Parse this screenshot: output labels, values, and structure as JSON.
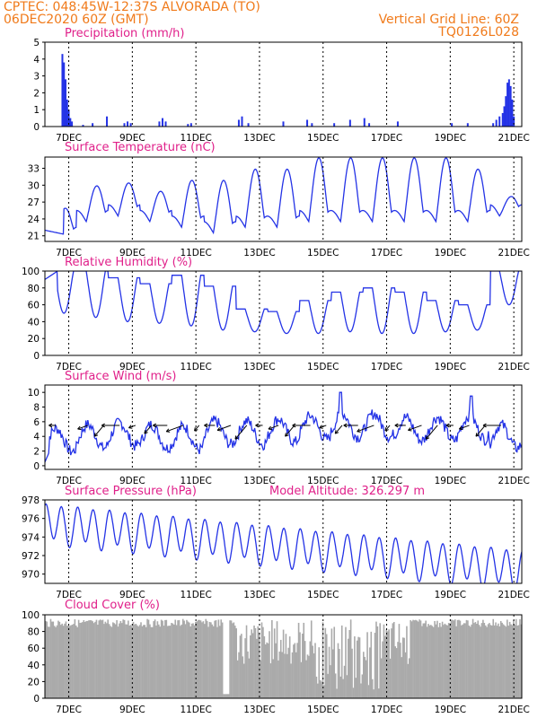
{
  "header": {
    "left_line1": "CPTEC:   048:45W-12:37S   ALVORADA (TO)",
    "left_line2": "06DEC2020 60Z (GMT)",
    "right_line1": "Vertical Grid Line: 60Z",
    "right_line2": "TQ0126L028"
  },
  "colors": {
    "header": "#f07a1a",
    "title": "#e0208a",
    "series": "#2433e6",
    "cloud": "#aaaaaa"
  },
  "x_axis": {
    "labels": [
      "7DEC",
      "9DEC",
      "11DEC",
      "13DEC",
      "15DEC",
      "17DEC",
      "19DEC",
      "21DEC"
    ],
    "positions_days": [
      0.75,
      2.75,
      4.75,
      6.75,
      8.75,
      10.75,
      12.75,
      14.75
    ],
    "range_days": [
      0,
      15
    ],
    "note_start": "06DEC2020"
  },
  "chart_data": [
    {
      "type": "bar",
      "id": "precip",
      "title": "Precipitation (mm/h)",
      "ylim": [
        0,
        5
      ],
      "yticks": [
        0,
        1,
        2,
        3,
        4,
        5
      ],
      "bars": [
        [
          0.55,
          4.3
        ],
        [
          0.6,
          3.8
        ],
        [
          0.65,
          2.8
        ],
        [
          0.7,
          1.6
        ],
        [
          0.75,
          1.0
        ],
        [
          0.8,
          0.5
        ],
        [
          0.85,
          0.3
        ],
        [
          1.2,
          0.1
        ],
        [
          1.5,
          0.2
        ],
        [
          1.95,
          0.6
        ],
        [
          2.5,
          0.2
        ],
        [
          2.6,
          0.3
        ],
        [
          2.7,
          0.2
        ],
        [
          3.6,
          0.3
        ],
        [
          3.7,
          0.5
        ],
        [
          3.8,
          0.3
        ],
        [
          4.5,
          0.15
        ],
        [
          4.6,
          0.2
        ],
        [
          6.1,
          0.4
        ],
        [
          6.2,
          0.6
        ],
        [
          6.4,
          0.2
        ],
        [
          7.5,
          0.3
        ],
        [
          8.25,
          0.4
        ],
        [
          8.4,
          0.2
        ],
        [
          9.1,
          0.2
        ],
        [
          9.6,
          0.4
        ],
        [
          10.05,
          0.5
        ],
        [
          10.2,
          0.2
        ],
        [
          11.1,
          0.3
        ],
        [
          12.8,
          0.2
        ],
        [
          13.3,
          0.2
        ],
        [
          14.1,
          0.2
        ],
        [
          14.2,
          0.4
        ],
        [
          14.3,
          0.6
        ],
        [
          14.4,
          0.8
        ],
        [
          14.45,
          1.2
        ],
        [
          14.5,
          1.8
        ],
        [
          14.55,
          2.6
        ],
        [
          14.6,
          2.8
        ],
        [
          14.65,
          2.4
        ],
        [
          14.7,
          1.6
        ],
        [
          14.75,
          0.6
        ]
      ]
    },
    {
      "type": "line",
      "id": "temp",
      "title": "Surface Temperature (nC)",
      "ylim": [
        20,
        35
      ],
      "yticks": [
        21,
        24,
        27,
        30,
        33
      ],
      "base": 23,
      "amp": 10,
      "phase_peak": 0.83,
      "amplitudes": [
        6,
        7,
        6.5,
        6,
        9,
        10,
        11,
        11,
        12,
        12,
        12,
        12,
        12,
        10,
        4
      ],
      "minima": [
        21,
        24,
        25,
        24,
        23,
        22,
        23,
        23,
        24,
        24,
        24,
        24,
        24,
        24,
        25
      ]
    },
    {
      "type": "line",
      "id": "rh",
      "title": "Relative Humidity (%)",
      "ylim": [
        0,
        100
      ],
      "yticks": [
        0,
        20,
        40,
        60,
        80,
        100
      ],
      "maxima": [
        100,
        100,
        92,
        85,
        95,
        82,
        55,
        52,
        65,
        75,
        80,
        75,
        65,
        60,
        100
      ],
      "minima": [
        50,
        45,
        40,
        38,
        35,
        30,
        28,
        26,
        26,
        28,
        26,
        26,
        28,
        30,
        60
      ]
    },
    {
      "type": "line",
      "id": "wind",
      "title": "Surface Wind (m/s)",
      "ylim": [
        -0.5,
        11
      ],
      "yticks": [
        0,
        2,
        4,
        6,
        8,
        10
      ],
      "series_base": [
        3.5,
        4.0,
        4.3,
        4.0,
        3.8,
        4.5,
        4.5,
        4.8,
        5.2,
        5.5,
        5.5,
        5.0,
        5.0,
        5.2,
        4.0
      ],
      "arrows_days": [
        0.35,
        1.35,
        1.85,
        2.35,
        2.85,
        3.35,
        3.85,
        4.35,
        4.85,
        5.35,
        5.85,
        6.35,
        6.85,
        7.35,
        7.85,
        8.35,
        8.85,
        9.35,
        9.85,
        10.35,
        10.85,
        11.35,
        11.85,
        12.35,
        12.85,
        13.35,
        13.85,
        14.35
      ]
    },
    {
      "type": "line",
      "id": "press",
      "title": "Surface Pressure (hPa)",
      "ylim": [
        969,
        978
      ],
      "yticks": [
        970,
        972,
        974,
        976,
        978
      ],
      "trend_start": 975.5,
      "trend_end": 970.5,
      "semidiurnal_amp": 2.0
    },
    {
      "type": "area",
      "id": "cloud",
      "title": "Cloud Cover (%)",
      "ylim": [
        0,
        100
      ],
      "yticks": [
        0,
        20,
        40,
        60,
        80,
        100
      ]
    }
  ],
  "annotations": {
    "model_altitude": "Model Altitude: 326.297 m"
  }
}
